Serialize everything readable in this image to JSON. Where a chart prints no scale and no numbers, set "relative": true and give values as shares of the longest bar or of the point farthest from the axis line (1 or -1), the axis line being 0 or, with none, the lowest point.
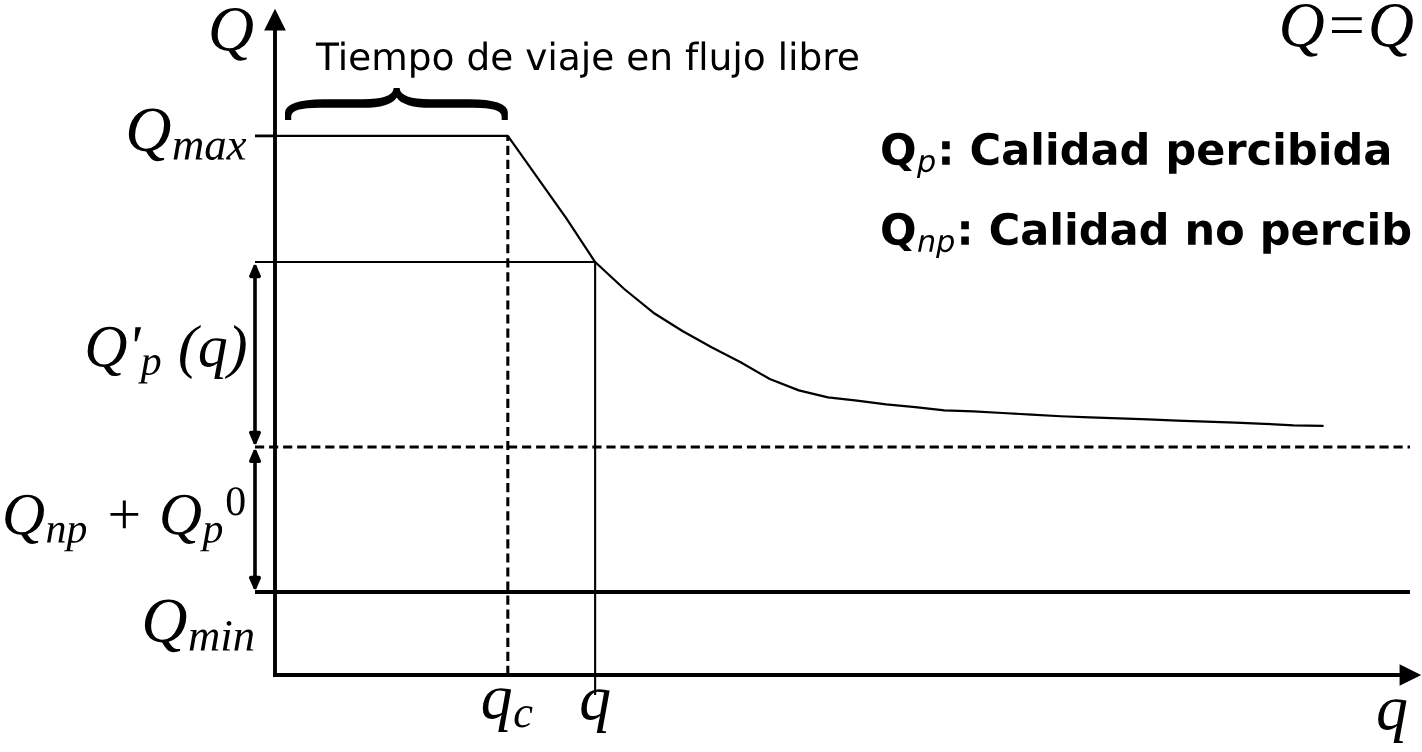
{
  "chart_data": {
    "type": "line",
    "relative": true,
    "xlabel": "q",
    "ylabel": "Q",
    "categories": [
      null,
      null,
      null,
      null,
      null,
      null,
      null,
      null,
      "q$_{c}$",
      null,
      null,
      "q",
      null,
      null,
      null,
      null,
      null,
      null,
      null,
      null,
      null,
      null,
      null,
      null,
      null,
      null,
      null,
      null,
      null,
      null,
      null,
      null,
      null,
      null,
      null,
      null,
      null,
      null,
      null,
      null
    ],
    "values": [
      1,
      1,
      1,
      1,
      1,
      1,
      1,
      1,
      1,
      0.924,
      0.848,
      0.766,
      0.716,
      0.672,
      0.638,
      0.608,
      0.58,
      0.549,
      0.528,
      0.515,
      0.509,
      0.502,
      0.497,
      0.491,
      0.489,
      0.486,
      0.483,
      0.48,
      0.478,
      0.476,
      0.474,
      0.472,
      0.47,
      0.468,
      0.466,
      0.463,
      0.462,
      null,
      null,
      null
    ],
    "color": "#000000",
    "ref_lines": [
      {
        "axis": "y",
        "value": 0.423,
        "line_style": "dashed"
      },
      {
        "axis": "y",
        "value": 0.154,
        "line_style": "solid",
        "label": "Q$_{min}$"
      },
      {
        "axis": "x",
        "value": "q$_{c}$",
        "line_style": "dashed"
      },
      {
        "axis": "x",
        "value": "q",
        "line_style": "solid"
      }
    ],
    "annotations": [
      "Q=Q",
      "Q$_{p}$: Calidad percibida",
      "Q$_{np}$: Calidad no percib",
      {
        "text": "Tiempo de viaje en flujo libre",
        "x": "q$_{c}$",
        "y": 1
      },
      "Q$_{max}$",
      "Q'$_{p}$ (q)",
      "Q$_{np}$ + Q$_{p}$$^{0}$"
    ]
  }
}
